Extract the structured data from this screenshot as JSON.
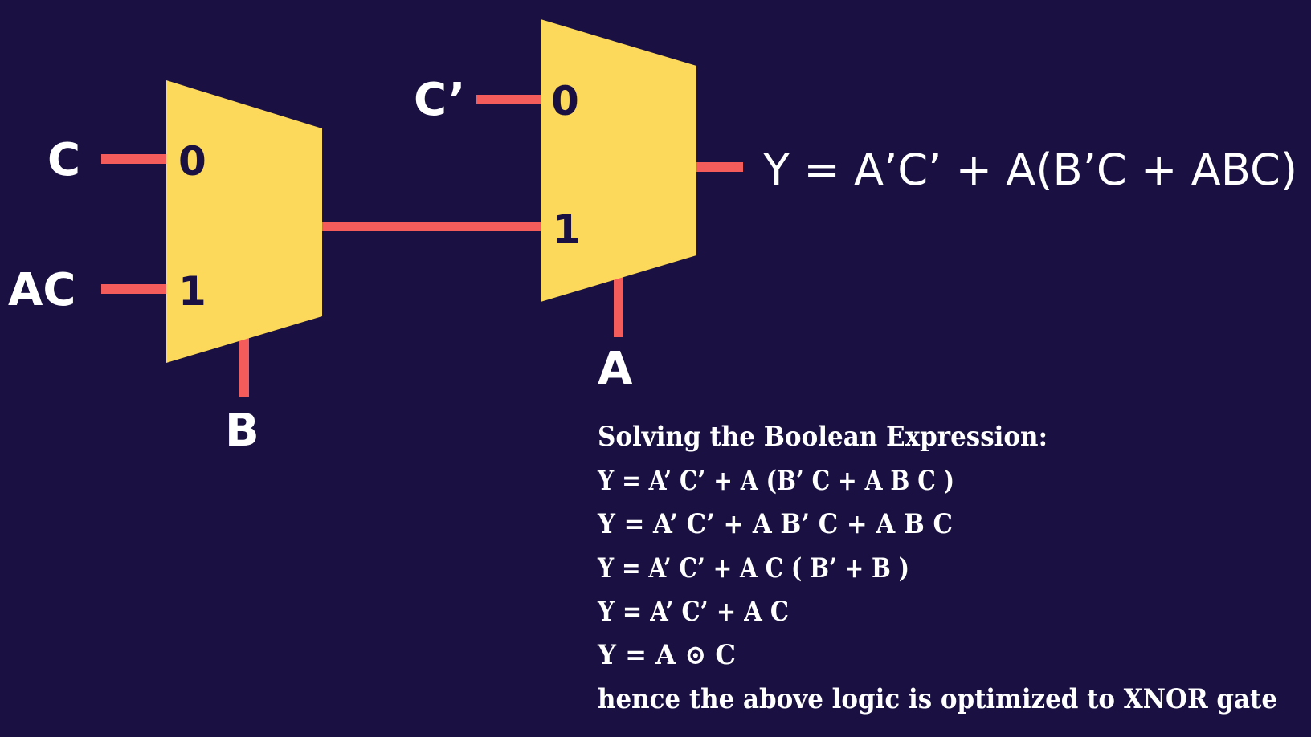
{
  "colors": {
    "background": "#1a1142",
    "mux_fill": "#fcd95b",
    "wire": "#f45b5b",
    "text": "#ffffff",
    "select_text": "#1a1142"
  },
  "mux1": {
    "input0_signal": "C",
    "input1_signal": "AC",
    "input0_select": "0",
    "input1_select": "1",
    "select_signal": "B"
  },
  "mux2": {
    "input0_signal": "C’",
    "input0_select": "0",
    "input1_select": "1",
    "select_signal": "A"
  },
  "output_expression": "Y = A’C’ + A(B’C + ABC)",
  "solution": {
    "heading": "Solving the Boolean Expression:",
    "steps": [
      "Y = A’ C’ + A (B’ C + A B C )",
      "Y = A’ C’ + A B’ C + A B C",
      "Y = A’ C’ + A C ( B’ + B )",
      "Y = A’ C’ + A C",
      "Y = A ⊙ C"
    ],
    "conclusion": "hence the above logic is optimized to XNOR gate"
  }
}
